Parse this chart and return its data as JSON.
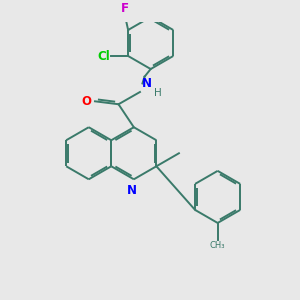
{
  "bg_color": "#e8e8e8",
  "bond_color": "#3a7a6a",
  "bond_width": 1.4,
  "atom_colors": {
    "N": "#0000ff",
    "O": "#ff0000",
    "Cl": "#00cc00",
    "F": "#cc00cc",
    "C": "#3a7a6a"
  },
  "font_size": 8.5
}
